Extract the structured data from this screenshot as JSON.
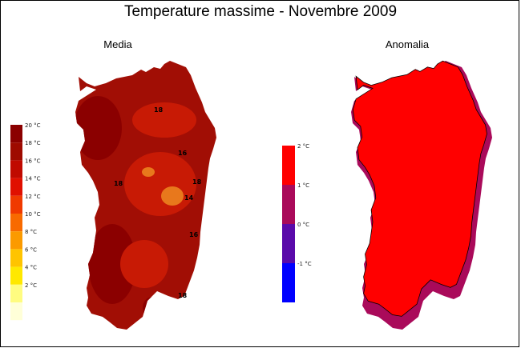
{
  "title": "Temperature massime - Novembre 2009",
  "panels": {
    "media": {
      "title": "Media"
    },
    "anomalia": {
      "title": "Anomalia"
    }
  },
  "legend_media": [
    {
      "label": "20 °C",
      "color": "#8b0000"
    },
    {
      "label": "18 °C",
      "color": "#9e0a00"
    },
    {
      "label": "16 °C",
      "color": "#c00a00"
    },
    {
      "label": "14 °C",
      "color": "#e01000"
    },
    {
      "label": "12 °C",
      "color": "#f03a00"
    },
    {
      "label": "10 °C",
      "color": "#f86a00"
    },
    {
      "label": "8 °C",
      "color": "#fb9a00"
    },
    {
      "label": "6 °C",
      "color": "#ffc400"
    },
    {
      "label": "4 °C",
      "color": "#ffe800"
    },
    {
      "label": "2 °C",
      "color": "#fffc80"
    },
    {
      "label": "",
      "color": "#ffffd8"
    }
  ],
  "legend_anomalia": [
    {
      "label": "2 °C",
      "color": "#ff0000"
    },
    {
      "label": "1 °C",
      "color": "#aa0a5a"
    },
    {
      "label": "0 °C",
      "color": "#5a0aaa"
    },
    {
      "label": "-1 °C",
      "color": "#0000ff"
    }
  ],
  "isoline_labels": [
    "18",
    "16",
    "18",
    "18",
    "14",
    "16",
    "18"
  ],
  "colors": {
    "media_base": "#a10e05",
    "media_dark": "#8b0000",
    "media_mid": "#c81a05",
    "media_light": "#e8781c",
    "anom_fill": "#ff0000",
    "anom_border": "#aa0a5a"
  }
}
